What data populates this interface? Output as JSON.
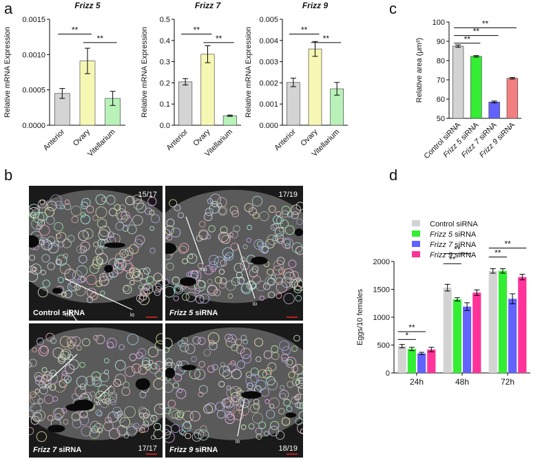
{
  "panels": [
    "a",
    "b",
    "c",
    "d"
  ],
  "chart_data": [
    {
      "type": "bar",
      "title": "Frizz 5",
      "ylabel": "Relative mRNA Expression",
      "categories": [
        "Anterior",
        "Ovary",
        "Vitellarium"
      ],
      "values": [
        0.00045,
        0.00091,
        0.00038
      ],
      "errors": [
        7e-05,
        0.00018,
        0.0001
      ],
      "colors": [
        "#d4d4d4",
        "#f7f7b4",
        "#b8f2b8"
      ],
      "ylim": [
        0,
        0.0015
      ],
      "yticks": [
        {
          "value": 0,
          "label": "0.0000"
        },
        {
          "value": 0.0005,
          "label": "0.0005"
        },
        {
          "value": 0.001,
          "label": "0.0010"
        },
        {
          "value": 0.0015,
          "label": "0.0015"
        }
      ],
      "annotations": [
        "**",
        "**"
      ]
    },
    {
      "type": "bar",
      "title": "Frizz 7",
      "ylabel": "Relative mRNA Expression",
      "categories": [
        "Anterior",
        "Ovary",
        "Vitellarium"
      ],
      "values": [
        0.205,
        0.335,
        0.045
      ],
      "errors": [
        0.015,
        0.04,
        0.003
      ],
      "colors": [
        "#d4d4d4",
        "#f7f7b4",
        "#b8f2b8"
      ],
      "ylim": [
        0,
        0.5
      ],
      "yticks": [
        {
          "value": 0,
          "label": "0.0"
        },
        0.1,
        0.2,
        0.3,
        0.4,
        0.5
      ],
      "annotations": [
        "**",
        "**"
      ]
    },
    {
      "type": "bar",
      "title": "Frizz 9",
      "ylabel": "Relative mRNA Expression",
      "categories": [
        "Anterior",
        "Ovary",
        "Vitellarium"
      ],
      "values": [
        0.00202,
        0.0036,
        0.00172
      ],
      "errors": [
        0.0002,
        0.00035,
        0.0003
      ],
      "colors": [
        "#d4d4d4",
        "#f7f7b4",
        "#b8f2b8"
      ],
      "ylim": [
        0,
        0.005
      ],
      "yticks": [
        {
          "value": 0,
          "label": "0.000"
        },
        0.001,
        0.002,
        0.003,
        0.004,
        0.005
      ],
      "annotations": [
        "**",
        "**"
      ]
    },
    {
      "type": "bar",
      "ylabel": "Relative area (μm²)",
      "categories": [
        "Control siRNA",
        "Frizz 5 siRNA",
        "Frizz 7 siRNA",
        "Frizz 9 siRNA"
      ],
      "values": [
        87.5,
        82.2,
        58.5,
        70.8
      ],
      "errors": [
        0.6,
        0.4,
        0.5,
        0.4
      ],
      "colors": [
        "#d3d3d3",
        "#33ee33",
        "#6262ff",
        "#f28080"
      ],
      "ylim": [
        50,
        100
      ],
      "yticks": [
        50,
        60,
        70,
        80,
        90,
        100
      ],
      "annotations": [
        "**",
        "**",
        "**"
      ]
    },
    {
      "type": "grouped-bar",
      "ylabel": "Eggs/10 females",
      "categories": [
        "24h",
        "48h",
        "72h"
      ],
      "series": [
        {
          "name": "Control siRNA",
          "color": "#d3d3d3",
          "values": [
            480,
            1530,
            1830
          ],
          "errors": [
            30,
            60,
            40
          ]
        },
        {
          "name": "Frizz 5 siRNA",
          "color": "#33ee33",
          "values": [
            430,
            1320,
            1830
          ],
          "errors": [
            30,
            30,
            40
          ]
        },
        {
          "name": "Frizz 7 siRNA",
          "color": "#6262ff",
          "values": [
            350,
            1190,
            1330
          ],
          "errors": [
            20,
            70,
            90
          ]
        },
        {
          "name": "Frizz 9 siRNA",
          "color": "#ff3399",
          "values": [
            420,
            1440,
            1720
          ],
          "errors": [
            40,
            50,
            50
          ]
        }
      ],
      "ylim": [
        0,
        2000
      ],
      "yticks": [
        0,
        500,
        1000,
        1500,
        2000
      ],
      "annotations": [
        "*",
        "**",
        "**",
        "**",
        "**",
        "**"
      ]
    }
  ],
  "micrographs": [
    {
      "count": "15/17",
      "label": "Control siRNA",
      "marks": [
        "mo",
        "io"
      ]
    },
    {
      "count": "17/19",
      "label": "Frizz 5 siRNA",
      "marks": [
        "mo",
        "io"
      ]
    },
    {
      "count": "17/17",
      "label": "Frizz 7 siRNA",
      "marks": [
        "mo",
        "io"
      ]
    },
    {
      "count": "18/19",
      "label": "Frizz 9 siRNA",
      "marks": [
        "io"
      ]
    }
  ]
}
